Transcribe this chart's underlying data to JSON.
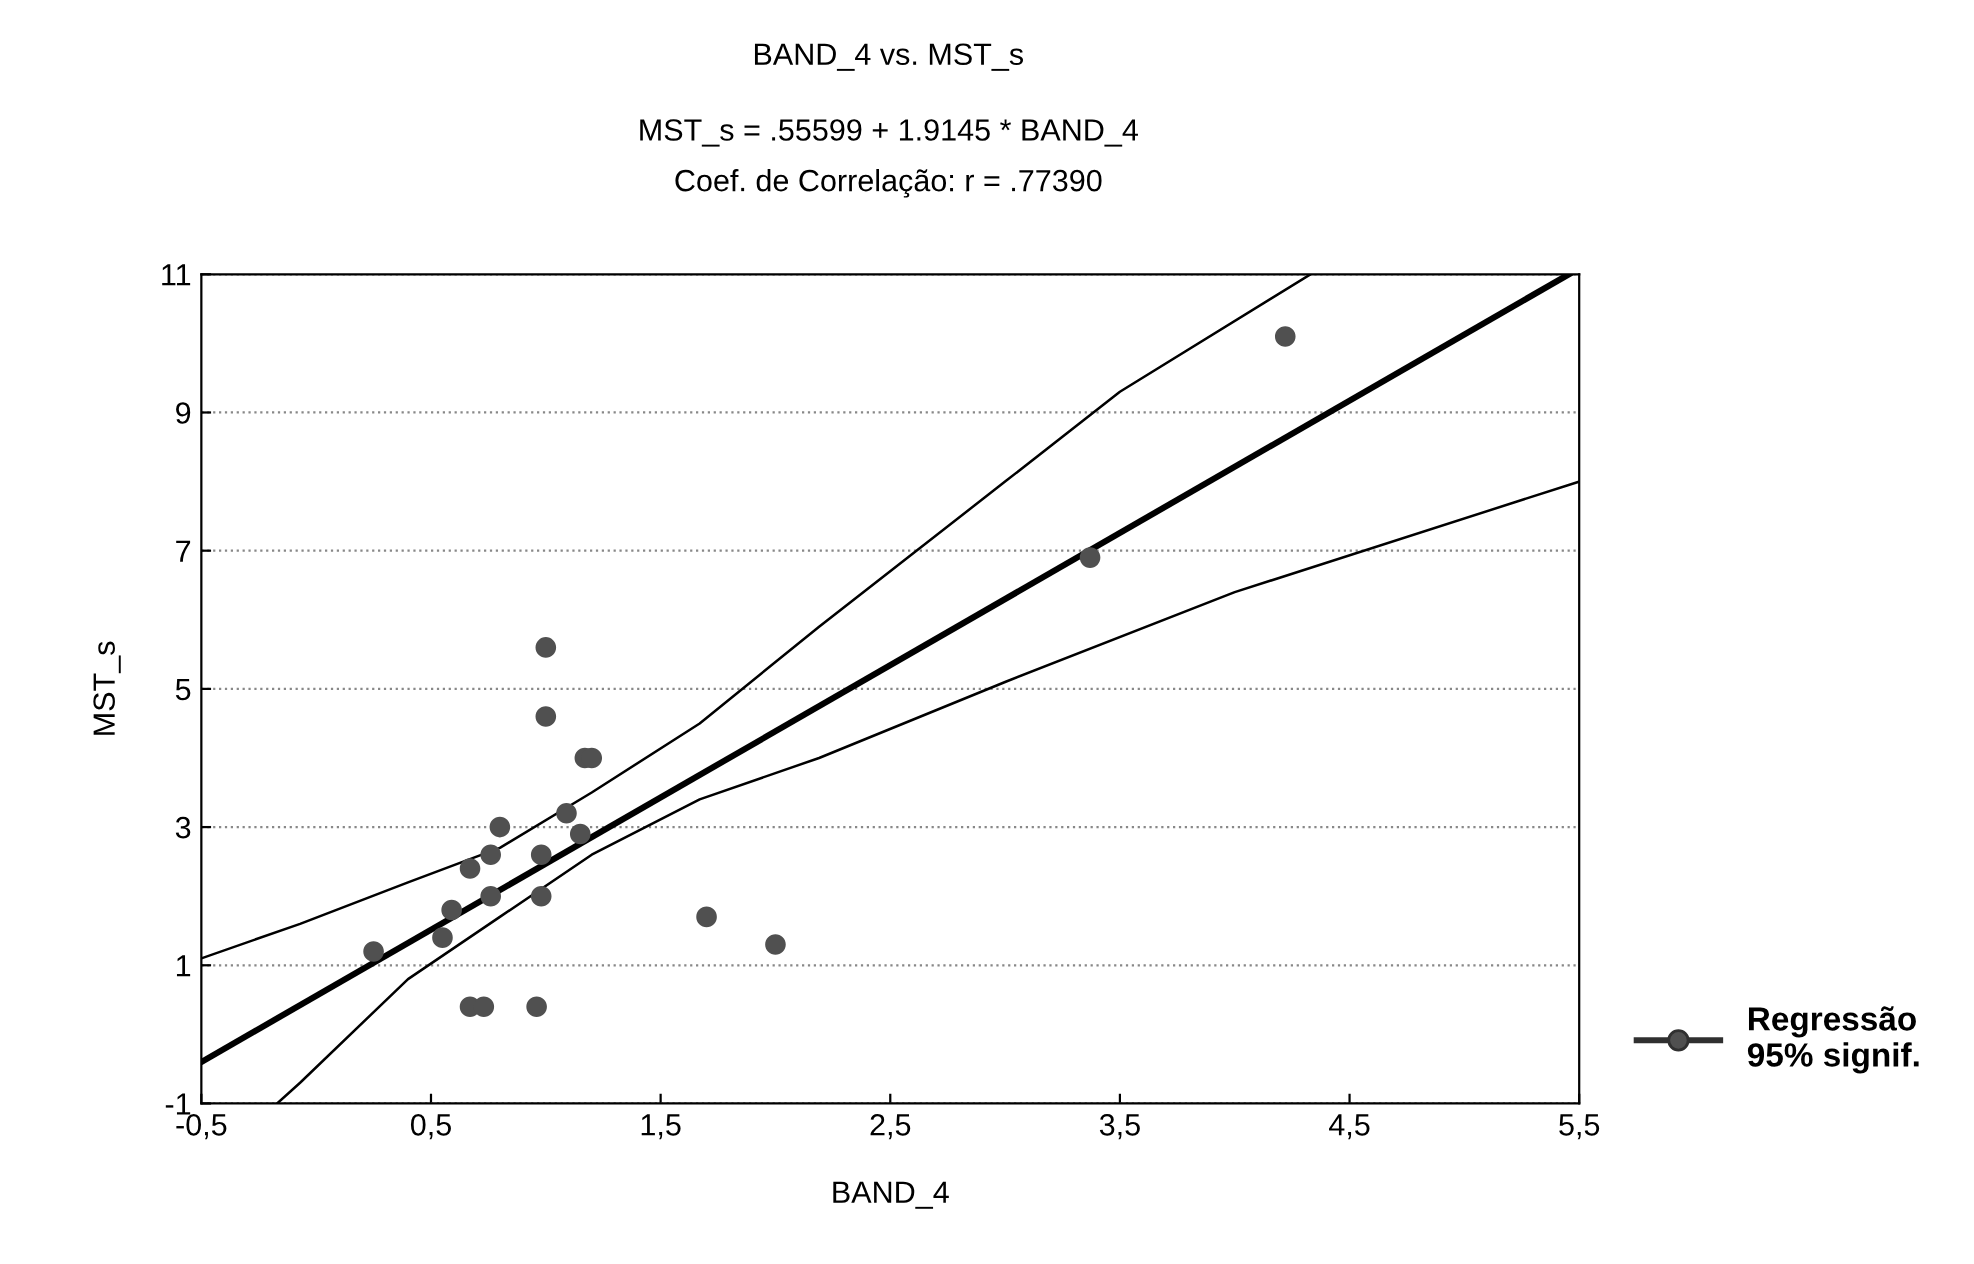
{
  "chart_data": {
    "type": "scatter",
    "title": "BAND_4 vs. MST_s",
    "subtitle": "MST_s = .55599 + 1.9145 * BAND_4\nCoef. de Correlação: r = .77390",
    "xlabel": "BAND_4",
    "ylabel": "MST_s",
    "series": [
      {
        "name": "Regressão\n95% signif.",
        "color": "#505050",
        "marker": "circle",
        "x": [
          1.0,
          1.0,
          1.17,
          1.2,
          1.09,
          0.8,
          0.76,
          0.98,
          1.15,
          0.67,
          0.76,
          0.98,
          0.59,
          0.55,
          0.25,
          1.7,
          2.0,
          0.67,
          0.73,
          0.96,
          3.37,
          4.22
        ],
        "values": [
          5.6,
          4.6,
          4.0,
          4.0,
          3.2,
          3.0,
          2.6,
          2.6,
          2.9,
          2.4,
          2.0,
          2.0,
          1.8,
          1.4,
          1.2,
          1.7,
          1.3,
          0.4,
          0.4,
          0.4,
          6.9,
          10.1
        ]
      },
      {
        "type": "line",
        "color": "#000000",
        "x": [
          -0.5,
          5.455
        ],
        "values": [
          -0.4,
          11.0
        ]
      },
      {
        "type": "line",
        "color": "#000000",
        "x": [
          -0.5,
          -0.07,
          0.4,
          0.8,
          1.2,
          1.67,
          2.19,
          3.0,
          3.5,
          4.33
        ],
        "values": [
          1.1,
          1.6,
          2.2,
          2.7,
          3.5,
          4.5,
          5.9,
          8.0,
          9.3,
          11.0
        ]
      },
      {
        "type": "line",
        "color": "#000000",
        "x": [
          -0.17,
          -0.07,
          0.4,
          0.8,
          1.2,
          1.67,
          2.19,
          3.0,
          4.0,
          5.5
        ],
        "values": [
          -1.0,
          -0.7,
          0.8,
          1.7,
          2.6,
          3.4,
          4.0,
          5.1,
          6.4,
          8.0
        ]
      }
    ],
    "xlim": [
      -0.5,
      5.5
    ],
    "xticks": [
      {
        "value": -0.5,
        "label": "-0,5"
      },
      {
        "value": 0.5,
        "label": "0,5"
      },
      {
        "value": 1.5,
        "label": "1,5"
      },
      {
        "value": 2.5,
        "label": "2,5"
      },
      {
        "value": 3.5,
        "label": "3,5"
      },
      {
        "value": 4.5,
        "label": "4,5"
      },
      {
        "value": 5.5,
        "label": "5,5"
      }
    ],
    "ylim": [
      -1,
      11
    ],
    "yticks": [
      -1,
      1,
      3,
      5,
      7,
      9,
      11
    ],
    "grid": "y",
    "legend": "bottom right",
    "marker": "none"
  }
}
